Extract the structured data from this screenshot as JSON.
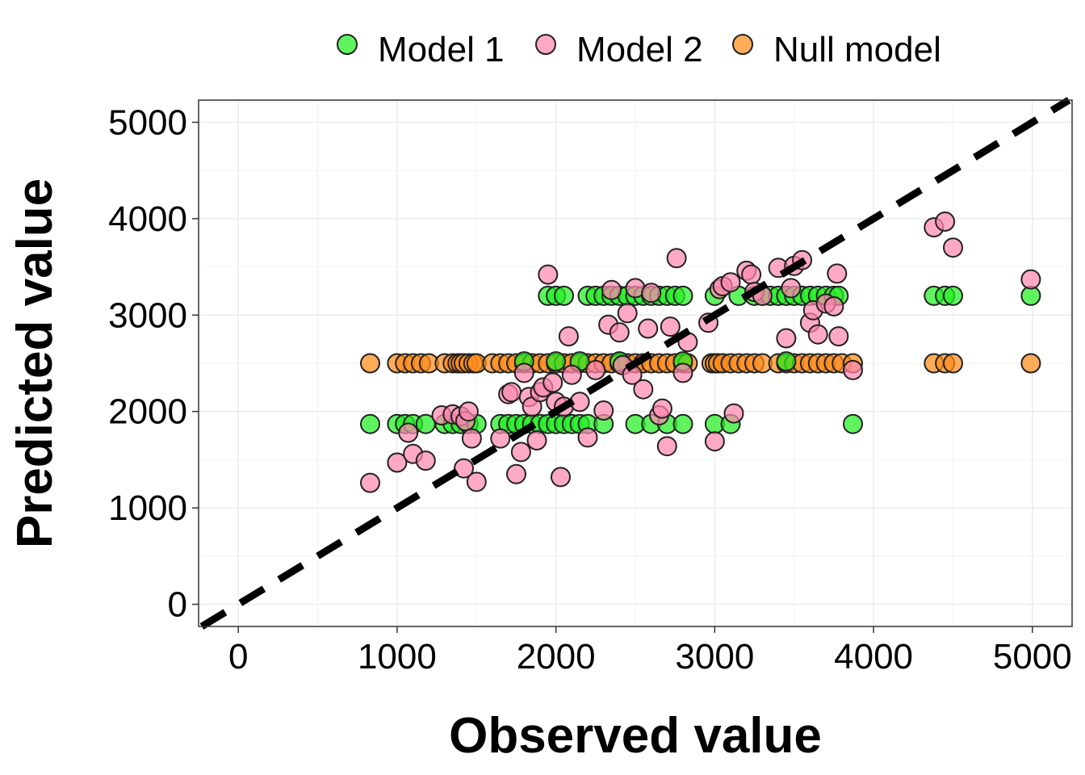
{
  "chart_data": {
    "type": "scatter",
    "title": "",
    "xlabel": "Observed value",
    "ylabel": "Predicted value",
    "xlim": [
      -250,
      5250
    ],
    "ylim": [
      -230,
      5230
    ],
    "x_ticks": [
      0,
      1000,
      2000,
      3000,
      4000,
      5000
    ],
    "y_ticks": [
      0,
      1000,
      2000,
      3000,
      4000,
      5000
    ],
    "x_tick_labels": [
      "0",
      "1000",
      "2000",
      "3000",
      "4000",
      "5000"
    ],
    "y_tick_labels": [
      "0",
      "1000",
      "2000",
      "3000",
      "4000",
      "5000"
    ],
    "grid": true,
    "legend_position": "top",
    "reference_line": {
      "type": "identity",
      "style": "dashed",
      "color": "#000000"
    },
    "series": [
      {
        "name": "Null model",
        "color": "#ff8c1a",
        "x": [
          830,
          1000,
          1050,
          1100,
          1150,
          1200,
          1300,
          1350,
          1380,
          1400,
          1420,
          1450,
          1480,
          1500,
          1600,
          1650,
          1700,
          1750,
          1800,
          1850,
          1900,
          1950,
          2000,
          2050,
          2100,
          2150,
          2200,
          2250,
          2300,
          2350,
          2400,
          2450,
          2500,
          2550,
          2600,
          2650,
          2700,
          2750,
          2800,
          2830,
          2980,
          3000,
          3020,
          3050,
          3100,
          3150,
          3200,
          3250,
          3300,
          3400,
          3450,
          3500,
          3550,
          3600,
          3650,
          3700,
          3750,
          3800,
          3870,
          4380,
          4450,
          4500,
          4990
        ],
        "y": [
          2500,
          2500,
          2500,
          2500,
          2500,
          2500,
          2500,
          2500,
          2500,
          2500,
          2500,
          2500,
          2500,
          2500,
          2500,
          2500,
          2500,
          2500,
          2500,
          2500,
          2500,
          2500,
          2500,
          2500,
          2500,
          2500,
          2500,
          2500,
          2500,
          2500,
          2500,
          2500,
          2500,
          2500,
          2500,
          2500,
          2500,
          2500,
          2500,
          2500,
          2500,
          2500,
          2500,
          2500,
          2500,
          2500,
          2500,
          2500,
          2500,
          2500,
          2500,
          2500,
          2500,
          2500,
          2500,
          2500,
          2500,
          2500,
          2500,
          2500,
          2500,
          2500,
          2500
        ]
      },
      {
        "name": "Model 1",
        "color": "#22ee22",
        "x": [
          830,
          1000,
          1050,
          1100,
          1180,
          1300,
          1350,
          1400,
          1450,
          1500,
          1650,
          1700,
          1750,
          1800,
          1850,
          1900,
          1950,
          2000,
          2050,
          2100,
          2150,
          2200,
          2300,
          2500,
          2600,
          2700,
          2800,
          3000,
          3100,
          3870,
          1950,
          2000,
          2050,
          2200,
          2250,
          2300,
          2350,
          2400,
          2450,
          2500,
          2550,
          2600,
          2650,
          2700,
          2750,
          2800,
          3000,
          3150,
          3250,
          3300,
          3350,
          3400,
          3450,
          3500,
          3550,
          3600,
          3650,
          3700,
          3750,
          3780,
          4380,
          4450,
          4500,
          4990,
          1800,
          2000,
          2150,
          2400,
          2800,
          3450
        ],
        "y": [
          1870,
          1870,
          1870,
          1870,
          1870,
          1870,
          1870,
          1870,
          1870,
          1870,
          1870,
          1870,
          1870,
          1870,
          1870,
          1870,
          1870,
          1870,
          1870,
          1870,
          1870,
          1870,
          1870,
          1870,
          1870,
          1870,
          1870,
          1870,
          1870,
          1870,
          3200,
          3200,
          3200,
          3200,
          3200,
          3200,
          3200,
          3200,
          3200,
          3200,
          3200,
          3200,
          3200,
          3200,
          3200,
          3200,
          3200,
          3200,
          3200,
          3200,
          3200,
          3200,
          3200,
          3200,
          3200,
          3200,
          3200,
          3200,
          3200,
          3200,
          3200,
          3200,
          3200,
          3200,
          2520,
          2520,
          2520,
          2520,
          2520,
          2520
        ]
      },
      {
        "name": "Model 2",
        "color": "#ff88b0",
        "x": [
          830,
          1000,
          1070,
          1100,
          1180,
          1280,
          1350,
          1400,
          1420,
          1430,
          1450,
          1470,
          1500,
          1650,
          1700,
          1720,
          1750,
          1780,
          1800,
          1830,
          1850,
          1880,
          1900,
          1920,
          1950,
          1980,
          2000,
          2030,
          2050,
          2080,
          2100,
          2150,
          2200,
          2250,
          2300,
          2330,
          2350,
          2400,
          2420,
          2450,
          2480,
          2500,
          2550,
          2580,
          2600,
          2650,
          2670,
          2700,
          2720,
          2760,
          2800,
          2830,
          2960,
          3000,
          3030,
          3050,
          3100,
          3120,
          3200,
          3230,
          3250,
          3300,
          3400,
          3450,
          3480,
          3500,
          3550,
          3600,
          3620,
          3650,
          3700,
          3750,
          3770,
          3780,
          3870,
          4380,
          4450,
          4500,
          4990
        ],
        "y": [
          1260,
          1470,
          1780,
          1560,
          1490,
          1960,
          1970,
          1950,
          1410,
          1900,
          2000,
          1720,
          1270,
          1720,
          2180,
          2200,
          1350,
          1580,
          2400,
          2150,
          2050,
          1700,
          2200,
          2250,
          3420,
          2300,
          2100,
          1320,
          2050,
          2780,
          2380,
          2100,
          1730,
          2430,
          2010,
          2900,
          3260,
          2820,
          2480,
          3020,
          2380,
          3280,
          2230,
          2860,
          3230,
          1960,
          2030,
          1640,
          2880,
          3590,
          2400,
          2720,
          2920,
          1690,
          3270,
          3300,
          3340,
          1980,
          3460,
          3420,
          3240,
          3200,
          3490,
          2760,
          3280,
          3510,
          3570,
          2920,
          3050,
          2800,
          3120,
          3090,
          3430,
          2780,
          2430,
          3910,
          3970,
          3700,
          3370
        ]
      }
    ]
  }
}
